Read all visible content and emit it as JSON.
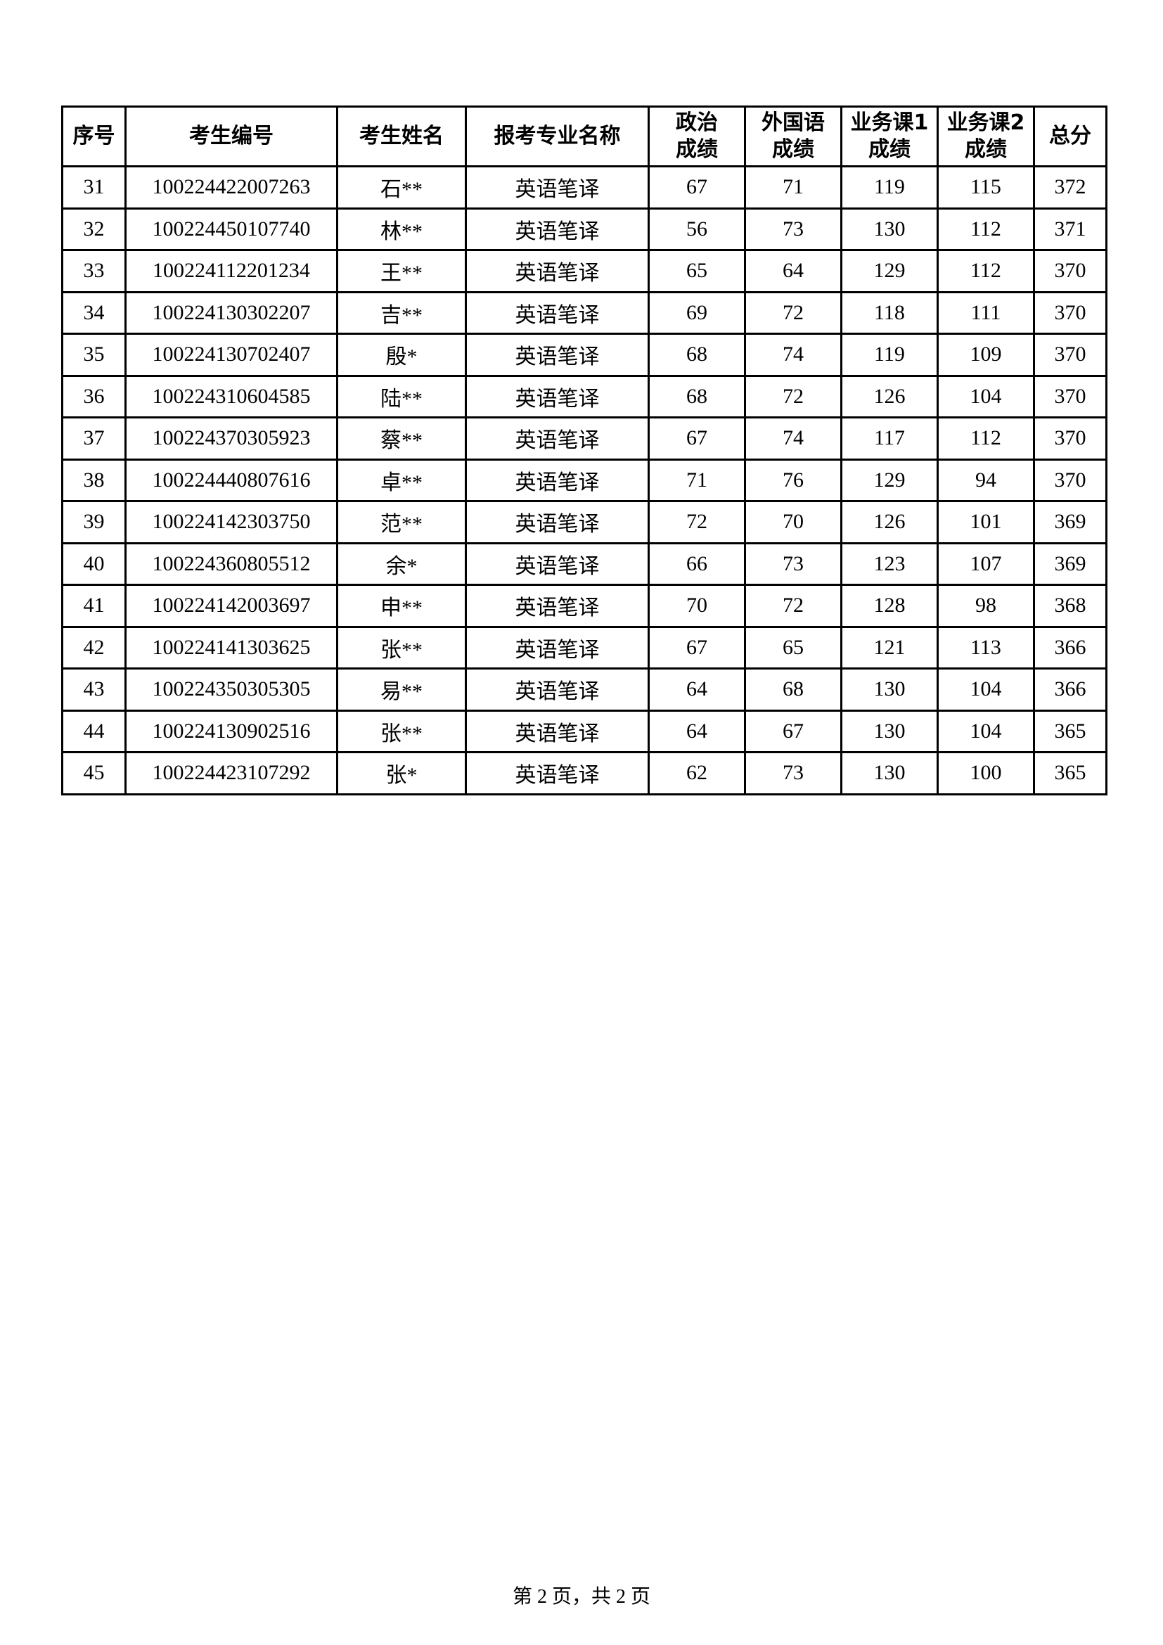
{
  "table": {
    "headers": [
      "序号",
      "考生编号",
      "考生姓名",
      "报考专业名称",
      [
        "政治",
        "成绩"
      ],
      [
        "外国语",
        "成绩"
      ],
      [
        "业务课1",
        "成绩"
      ],
      [
        "业务课2",
        "成绩"
      ],
      "总分"
    ],
    "rows": [
      [
        "31",
        "100224422007263",
        "石**",
        "英语笔译",
        "67",
        "71",
        "119",
        "115",
        "372"
      ],
      [
        "32",
        "100224450107740",
        "林**",
        "英语笔译",
        "56",
        "73",
        "130",
        "112",
        "371"
      ],
      [
        "33",
        "100224112201234",
        "王**",
        "英语笔译",
        "65",
        "64",
        "129",
        "112",
        "370"
      ],
      [
        "34",
        "100224130302207",
        "吉**",
        "英语笔译",
        "69",
        "72",
        "118",
        "111",
        "370"
      ],
      [
        "35",
        "100224130702407",
        "殷*",
        "英语笔译",
        "68",
        "74",
        "119",
        "109",
        "370"
      ],
      [
        "36",
        "100224310604585",
        "陆**",
        "英语笔译",
        "68",
        "72",
        "126",
        "104",
        "370"
      ],
      [
        "37",
        "100224370305923",
        "蔡**",
        "英语笔译",
        "67",
        "74",
        "117",
        "112",
        "370"
      ],
      [
        "38",
        "100224440807616",
        "卓**",
        "英语笔译",
        "71",
        "76",
        "129",
        "94",
        "370"
      ],
      [
        "39",
        "100224142303750",
        "范**",
        "英语笔译",
        "72",
        "70",
        "126",
        "101",
        "369"
      ],
      [
        "40",
        "100224360805512",
        "余*",
        "英语笔译",
        "66",
        "73",
        "123",
        "107",
        "369"
      ],
      [
        "41",
        "100224142003697",
        "申**",
        "英语笔译",
        "70",
        "72",
        "128",
        "98",
        "368"
      ],
      [
        "42",
        "100224141303625",
        "张**",
        "英语笔译",
        "67",
        "65",
        "121",
        "113",
        "366"
      ],
      [
        "43",
        "100224350305305",
        "易**",
        "英语笔译",
        "64",
        "68",
        "130",
        "104",
        "366"
      ],
      [
        "44",
        "100224130902516",
        "张**",
        "英语笔译",
        "64",
        "67",
        "130",
        "104",
        "365"
      ],
      [
        "45",
        "100224423107292",
        "张*",
        "英语笔译",
        "62",
        "73",
        "130",
        "100",
        "365"
      ]
    ]
  },
  "footer": "第 2 页，共 2 页"
}
